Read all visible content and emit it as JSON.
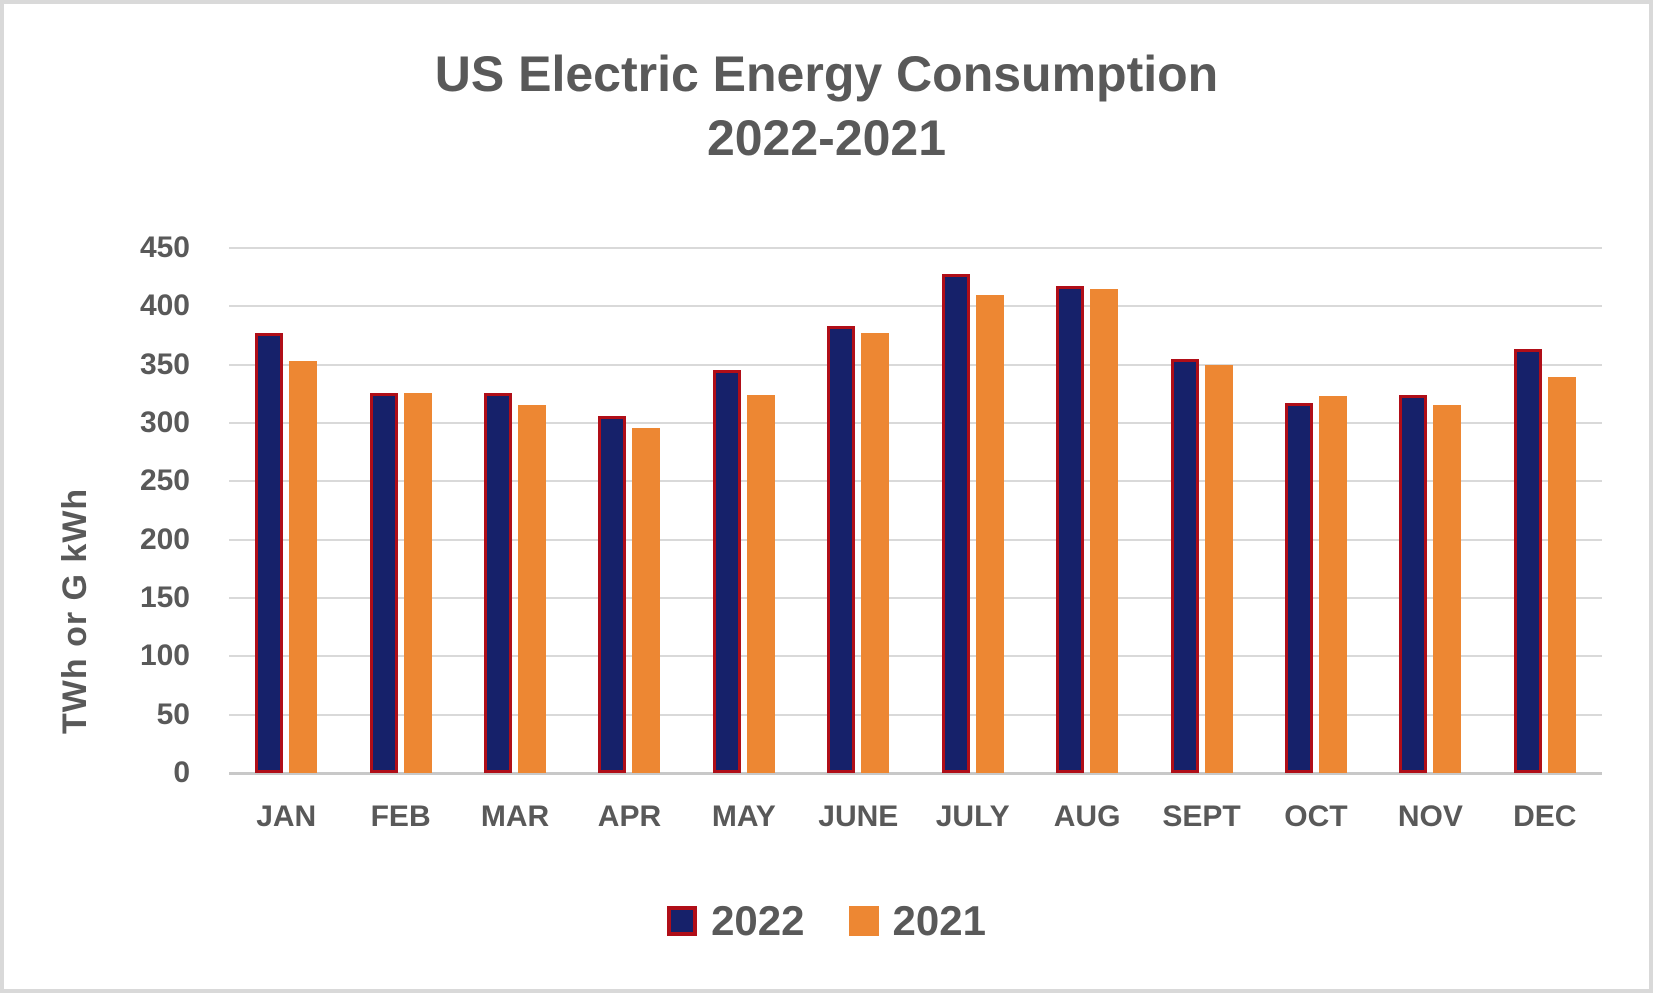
{
  "title": {
    "line1": "US Electric Energy Consumption",
    "line2": "2022-2021"
  },
  "chart_data": {
    "type": "bar",
    "categories": [
      "JAN",
      "FEB",
      "MAR",
      "APR",
      "MAY",
      "JUNE",
      "JULY",
      "AUG",
      "SEPT",
      "OCT",
      "NOV",
      "DEC"
    ],
    "series": [
      {
        "name": "2022",
        "values": [
          377,
          326,
          326,
          306,
          345,
          383,
          428,
          417,
          355,
          317,
          324,
          363
        ],
        "fill": "#16216A",
        "stroke": "#B00E18"
      },
      {
        "name": "2021",
        "values": [
          353,
          326,
          315,
          296,
          324,
          377,
          410,
          415,
          350,
          323,
          315,
          339
        ],
        "fill": "#ED8733",
        "stroke": "#ED8733"
      }
    ],
    "xlabel": "",
    "ylabel": "TWh or G kWh",
    "ylim": [
      0,
      450
    ],
    "yticks": [
      0,
      50,
      100,
      150,
      200,
      250,
      300,
      350,
      400,
      450
    ],
    "grid": true,
    "legend_position": "bottom"
  },
  "colors": {
    "text": "#595959",
    "gridline": "#D9D9D9",
    "axis_line": "#C8C8C8",
    "background": "#FFFFFF",
    "canvas_border": "#D9D9D9"
  }
}
